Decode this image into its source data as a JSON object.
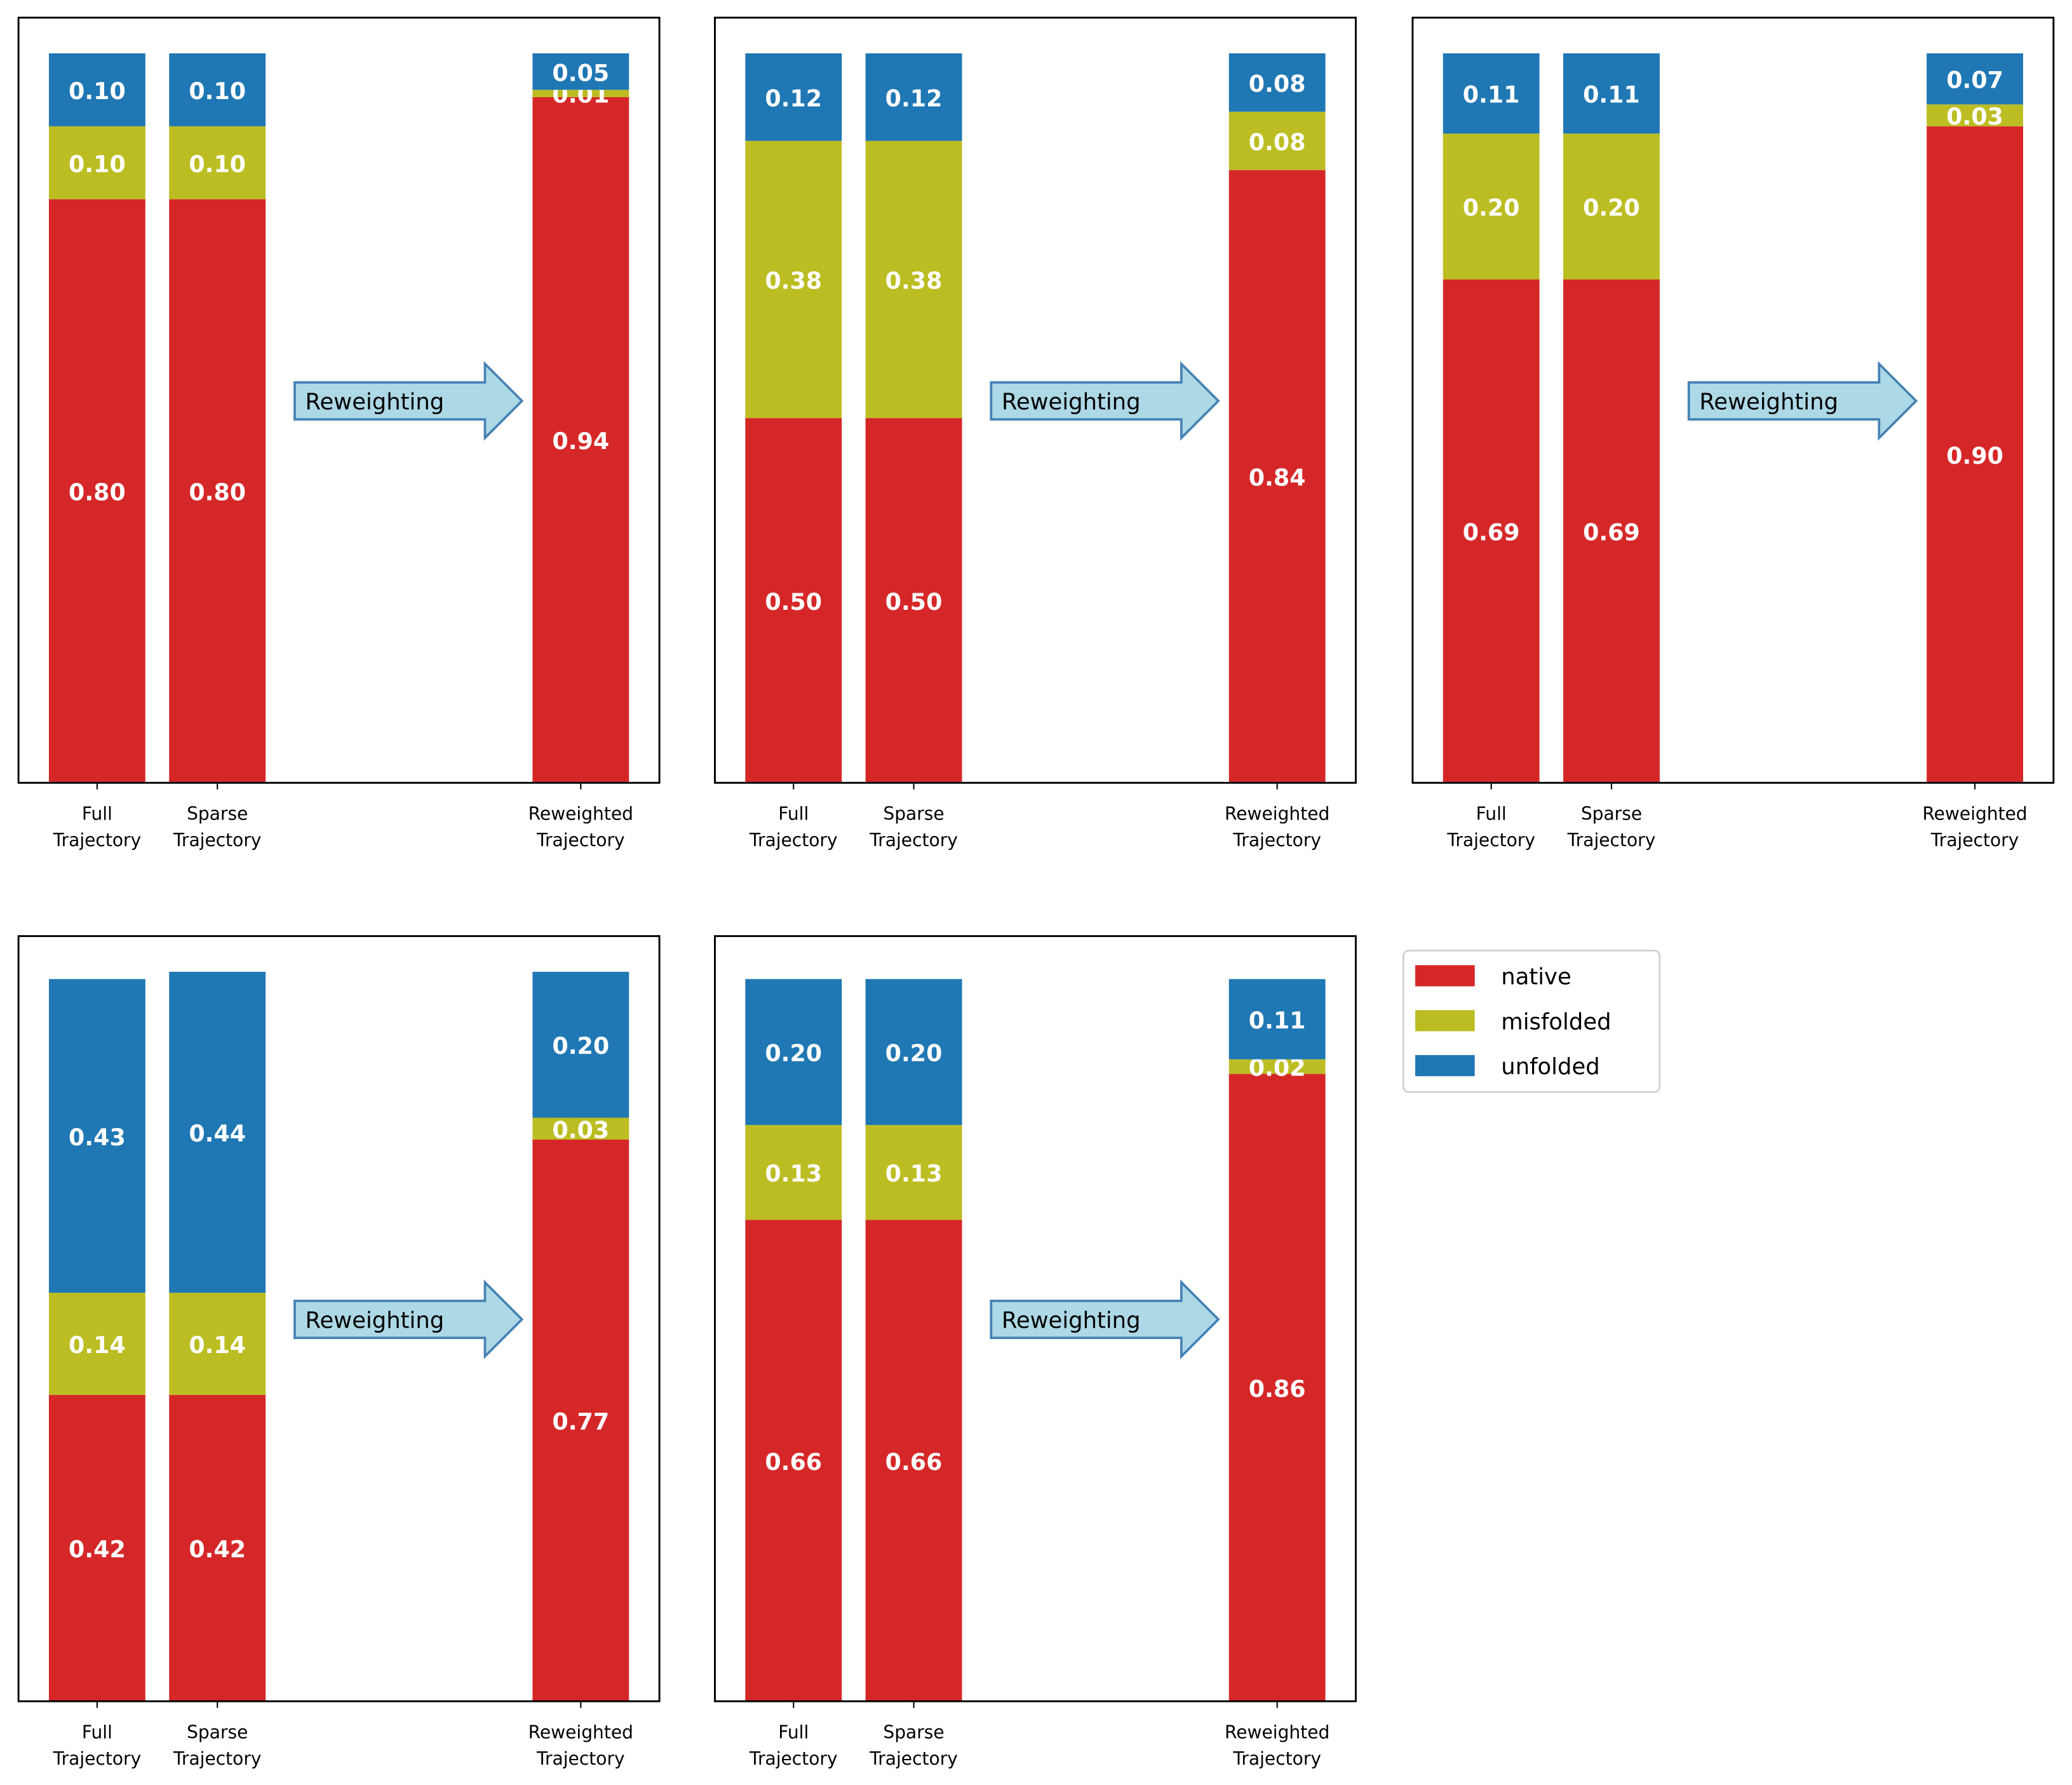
{
  "chart_data": {
    "type": "bar",
    "stacked": true,
    "legend": {
      "placement": "right of bottom row",
      "entries": [
        "native",
        "misfolded",
        "unfolded"
      ]
    },
    "colors": {
      "native": "#d62728",
      "misfolded": "#bcbd22",
      "unfolded": "#1f77b4",
      "arrow_fill": "#add8e6",
      "arrow_edge": "#4682b4"
    },
    "annotation": "Reweighting",
    "categories": [
      "Full\nTrajectory",
      "Sparse\nTrajectory",
      "Reweighted\nTrajectory"
    ],
    "ylim": [
      0,
      1.05
    ],
    "panels": [
      {
        "series": [
          {
            "name": "native",
            "values": [
              0.8,
              0.8,
              0.94
            ]
          },
          {
            "name": "misfolded",
            "values": [
              0.1,
              0.1,
              0.01
            ]
          },
          {
            "name": "unfolded",
            "values": [
              0.1,
              0.1,
              0.05
            ]
          }
        ]
      },
      {
        "series": [
          {
            "name": "native",
            "values": [
              0.5,
              0.5,
              0.84
            ]
          },
          {
            "name": "misfolded",
            "values": [
              0.38,
              0.38,
              0.08
            ]
          },
          {
            "name": "unfolded",
            "values": [
              0.12,
              0.12,
              0.08
            ]
          }
        ]
      },
      {
        "series": [
          {
            "name": "native",
            "values": [
              0.69,
              0.69,
              0.9
            ]
          },
          {
            "name": "misfolded",
            "values": [
              0.2,
              0.2,
              0.03
            ]
          },
          {
            "name": "unfolded",
            "values": [
              0.11,
              0.11,
              0.07
            ]
          }
        ]
      },
      {
        "series": [
          {
            "name": "native",
            "values": [
              0.42,
              0.42,
              0.77
            ]
          },
          {
            "name": "misfolded",
            "values": [
              0.14,
              0.14,
              0.03
            ]
          },
          {
            "name": "unfolded",
            "values": [
              0.43,
              0.44,
              0.2
            ]
          }
        ]
      },
      {
        "series": [
          {
            "name": "native",
            "values": [
              0.66,
              0.66,
              0.86
            ]
          },
          {
            "name": "misfolded",
            "values": [
              0.13,
              0.13,
              0.02
            ]
          },
          {
            "name": "unfolded",
            "values": [
              0.2,
              0.2,
              0.11
            ]
          }
        ]
      }
    ]
  }
}
